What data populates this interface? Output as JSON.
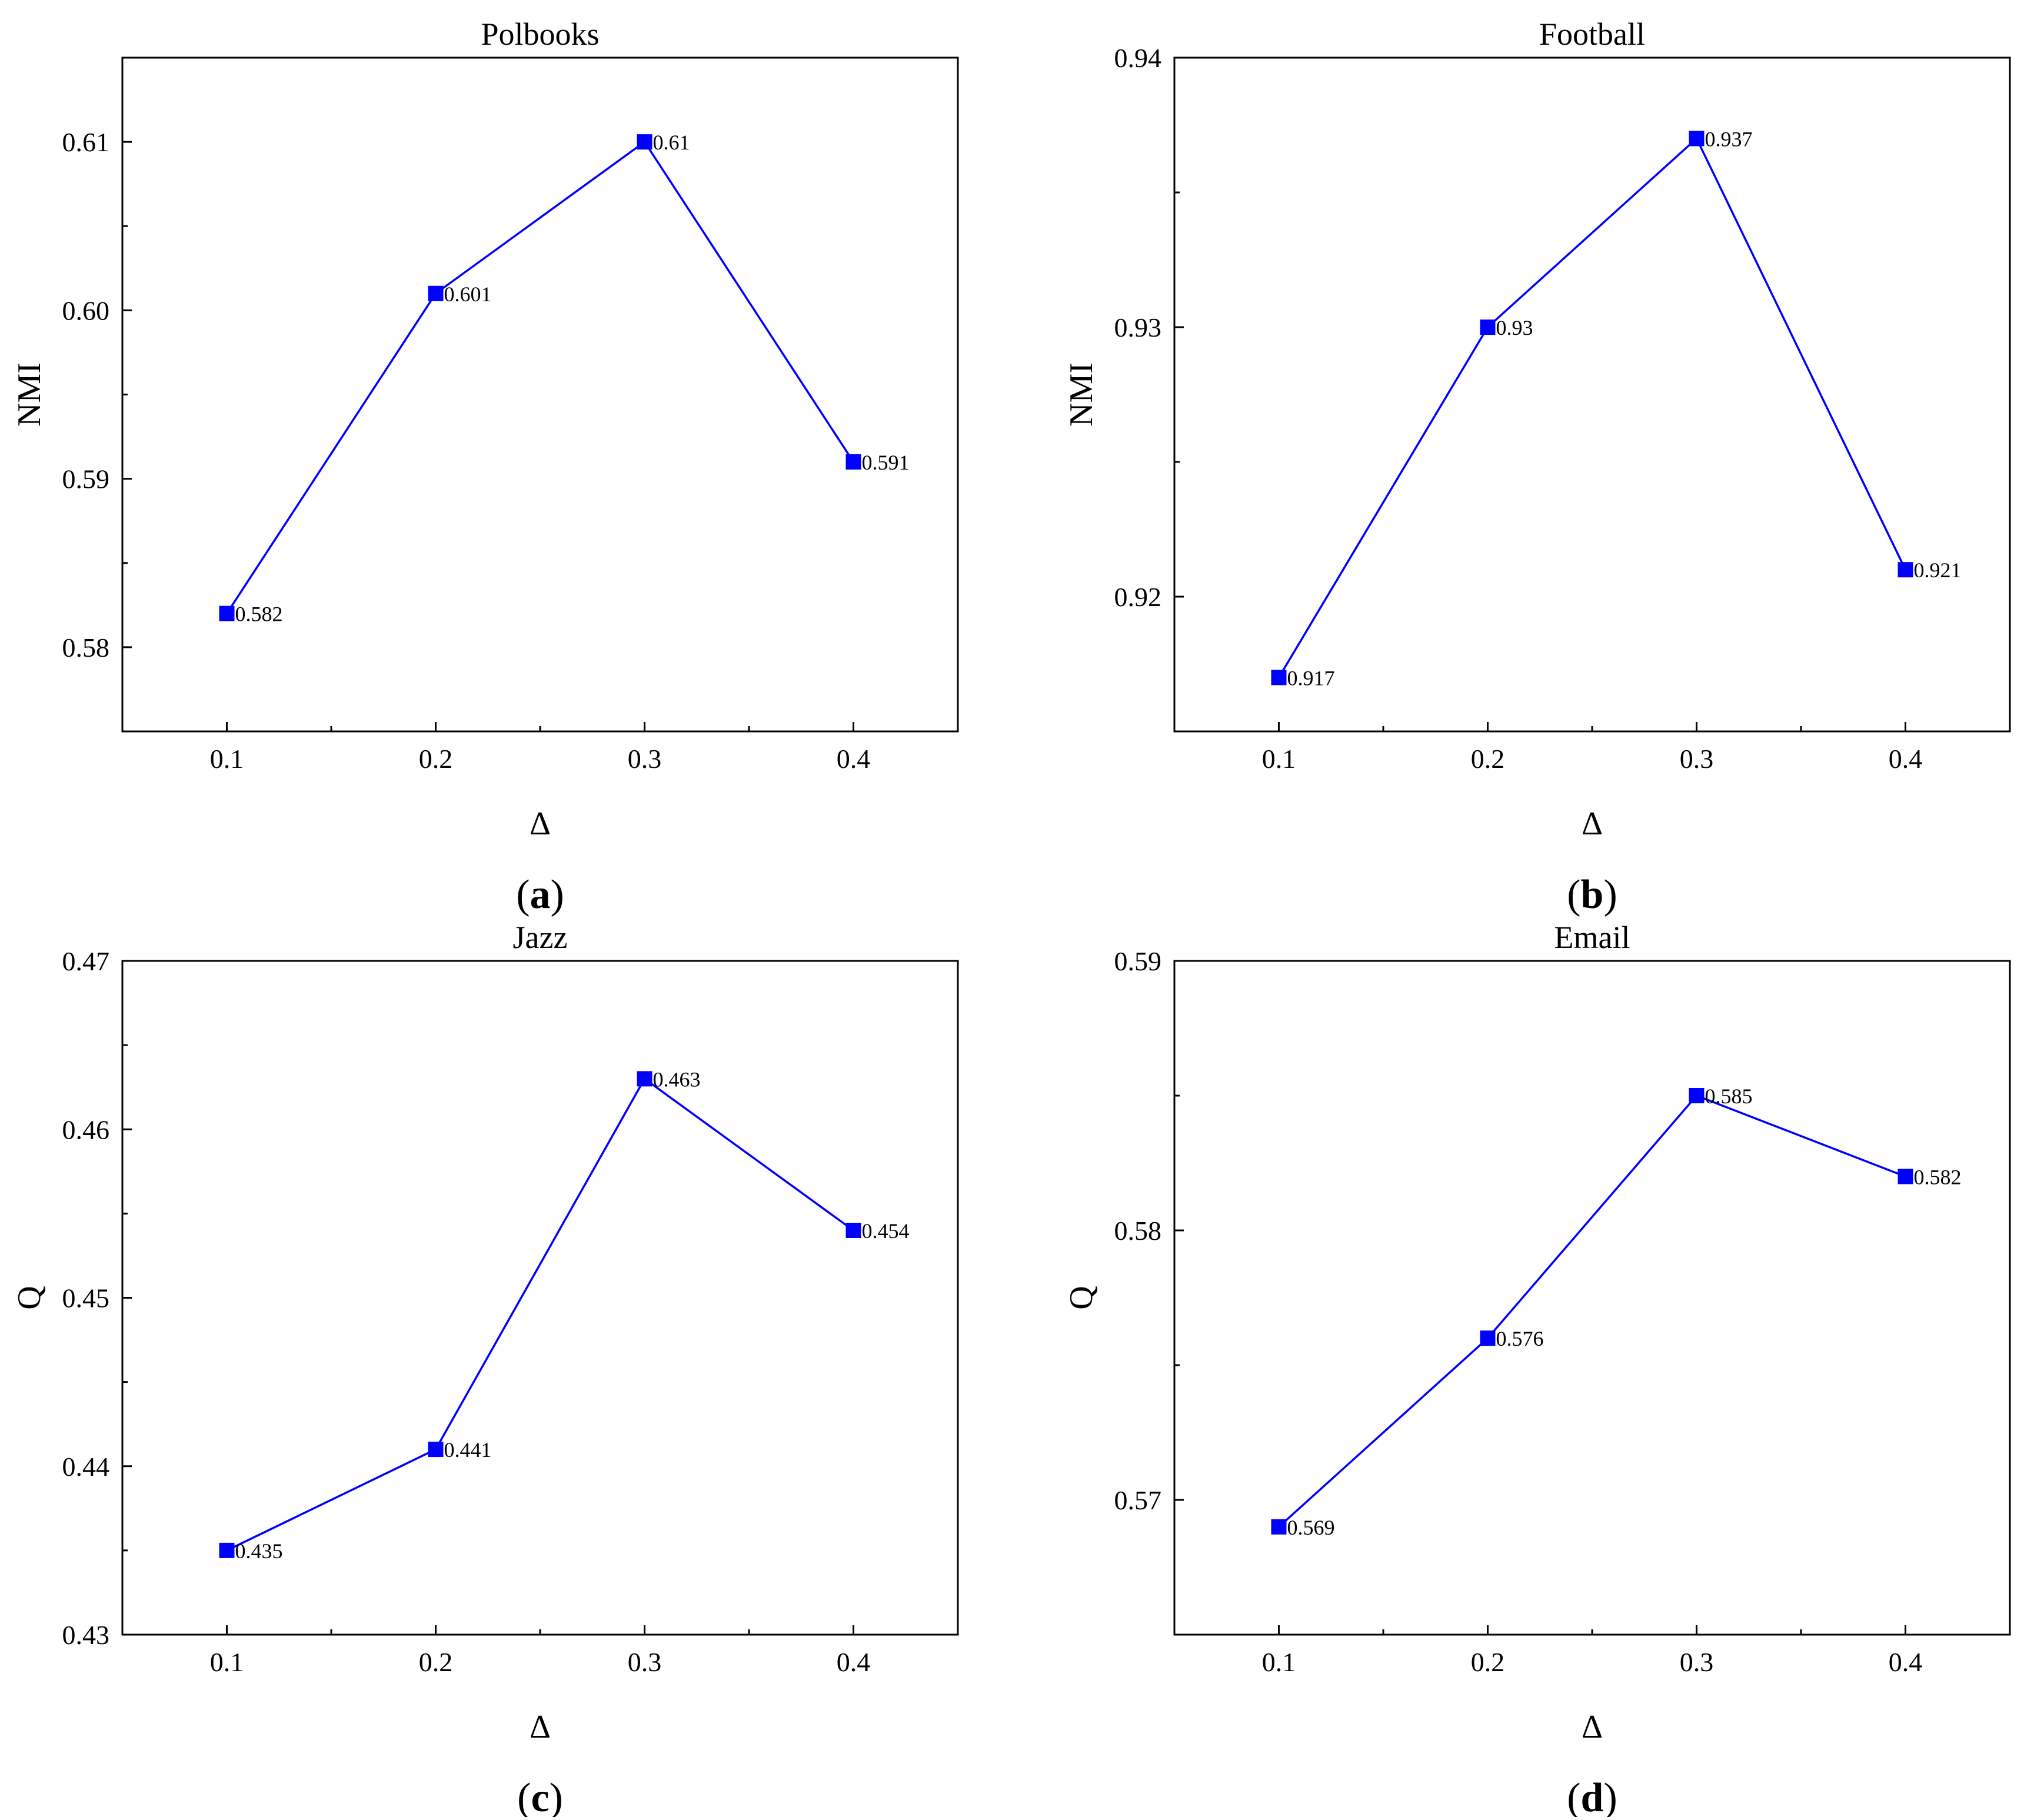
{
  "figure": {
    "panels": [
      "(a)",
      "(b)",
      "(c)",
      "(d)"
    ]
  },
  "chart_data": [
    {
      "type": "line",
      "panel_label": "(a)",
      "title": "Polbooks",
      "xlabel": "Δ",
      "ylabel": "NMI",
      "x": [
        0.1,
        0.2,
        0.3,
        0.4
      ],
      "x_ticks": [
        "0.1",
        "0.2",
        "0.3",
        "0.4"
      ],
      "xlim": [
        0.05,
        0.45
      ],
      "ylim": [
        0.575,
        0.615
      ],
      "y_ticks": [
        "0.58",
        "0.59",
        "0.60",
        "0.61"
      ],
      "y_tick_values": [
        0.58,
        0.59,
        0.6,
        0.61
      ],
      "series": [
        {
          "values": [
            0.582,
            0.601,
            0.61,
            0.591
          ],
          "labels": [
            "0.582",
            "0.601",
            "0.61",
            "0.591"
          ],
          "color": "#0000ff",
          "marker": "square"
        }
      ],
      "grid": false,
      "legend": "none"
    },
    {
      "type": "line",
      "panel_label": "(b)",
      "title": "Football",
      "xlabel": "Δ",
      "ylabel": "NMI",
      "x": [
        0.1,
        0.2,
        0.3,
        0.4
      ],
      "x_ticks": [
        "0.1",
        "0.2",
        "0.3",
        "0.4"
      ],
      "xlim": [
        0.05,
        0.45
      ],
      "ylim": [
        0.915,
        0.94
      ],
      "y_ticks": [
        "0.92",
        "0.93",
        "0.94"
      ],
      "y_tick_values": [
        0.92,
        0.93,
        0.94
      ],
      "series": [
        {
          "values": [
            0.917,
            0.93,
            0.937,
            0.921
          ],
          "labels": [
            "0.917",
            "0.93",
            "0.937",
            "0.921"
          ],
          "color": "#0000ff",
          "marker": "square"
        }
      ],
      "grid": false,
      "legend": "none"
    },
    {
      "type": "line",
      "panel_label": "(c)",
      "title": "Jazz",
      "xlabel": "Δ",
      "ylabel": "Q",
      "x": [
        0.1,
        0.2,
        0.3,
        0.4
      ],
      "x_ticks": [
        "0.1",
        "0.2",
        "0.3",
        "0.4"
      ],
      "xlim": [
        0.05,
        0.45
      ],
      "ylim": [
        0.43,
        0.47
      ],
      "y_ticks": [
        "0.43",
        "0.44",
        "0.45",
        "0.46",
        "0.47"
      ],
      "y_tick_values": [
        0.43,
        0.44,
        0.45,
        0.46,
        0.47
      ],
      "series": [
        {
          "values": [
            0.435,
            0.441,
            0.463,
            0.454
          ],
          "labels": [
            "0.435",
            "0.441",
            "0.463",
            "0.454"
          ],
          "color": "#0000ff",
          "marker": "square"
        }
      ],
      "grid": false,
      "legend": "none"
    },
    {
      "type": "line",
      "panel_label": "(d)",
      "title": "Email",
      "xlabel": "Δ",
      "ylabel": "Q",
      "x": [
        0.1,
        0.2,
        0.3,
        0.4
      ],
      "x_ticks": [
        "0.1",
        "0.2",
        "0.3",
        "0.4"
      ],
      "xlim": [
        0.05,
        0.45
      ],
      "ylim": [
        0.565,
        0.59
      ],
      "y_ticks": [
        "0.57",
        "0.58",
        "0.59"
      ],
      "y_tick_values": [
        0.57,
        0.58,
        0.59
      ],
      "series": [
        {
          "values": [
            0.569,
            0.576,
            0.585,
            0.582
          ],
          "labels": [
            "0.569",
            "0.576",
            "0.585",
            "0.582"
          ],
          "color": "#0000ff",
          "marker": "square"
        }
      ],
      "grid": false,
      "legend": "none"
    }
  ]
}
